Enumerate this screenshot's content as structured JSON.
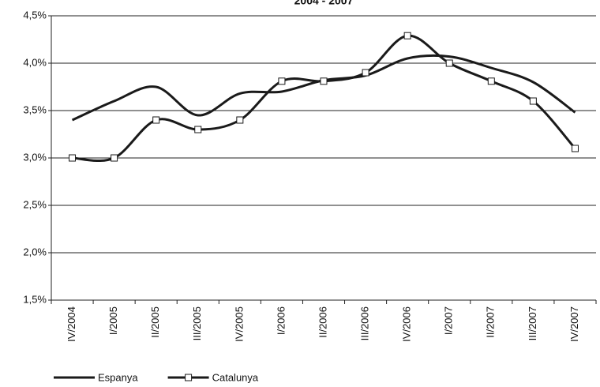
{
  "chart_data": {
    "type": "line",
    "title": "2004 - 2007",
    "categories": [
      "IV/2004",
      "I/2005",
      "II/2005",
      "III/2005",
      "IV/2005",
      "I/2006",
      "II/2006",
      "III/2006",
      "IV/2006",
      "I/2007",
      "II/2007",
      "III/2007",
      "IV/2007"
    ],
    "series": [
      {
        "name": "Espanya",
        "color": "#1a1a1a",
        "marker": false,
        "values": [
          3.4,
          3.6,
          3.75,
          3.45,
          3.68,
          3.7,
          3.82,
          3.87,
          4.05,
          4.07,
          3.95,
          3.8,
          3.48
        ]
      },
      {
        "name": "Catalunya",
        "color": "#1a1a1a",
        "marker": true,
        "values": [
          3.0,
          3.0,
          3.4,
          3.3,
          3.4,
          3.81,
          3.81,
          3.9,
          4.29,
          4.0,
          3.81,
          3.6,
          3.1
        ]
      }
    ],
    "ylim": [
      1.5,
      4.5
    ],
    "yticks": [
      {
        "value": 1.5,
        "label": "1,5%"
      },
      {
        "value": 2.0,
        "label": "2,0%"
      },
      {
        "value": 2.5,
        "label": "2,5%"
      },
      {
        "value": 3.0,
        "label": "3,0%"
      },
      {
        "value": 3.5,
        "label": "3,5%"
      },
      {
        "value": 4.0,
        "label": "4,0%"
      },
      {
        "value": 4.5,
        "label": "4,5%"
      }
    ],
    "grid": true,
    "legend": "bottom-left"
  }
}
